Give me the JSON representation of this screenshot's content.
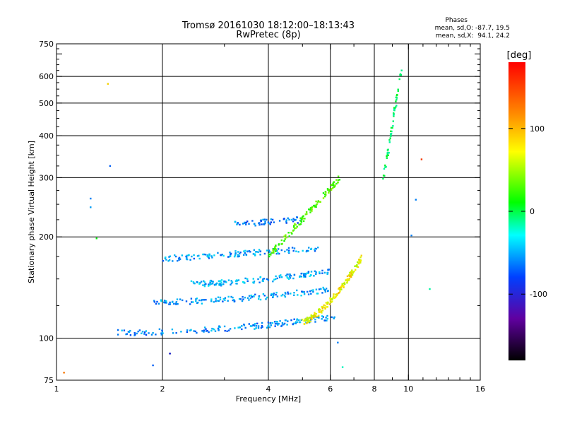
{
  "chart_data": {
    "type": "scatter",
    "title": "Tromsø 20161030 18:12:00–18:13:43",
    "subtitle": "RwPretec (8p)",
    "xlabel": "Frequency [MHz]",
    "ylabel": "Stationary phase Virtual Height [km]",
    "xscale": "log",
    "yscale": "log",
    "xlim": [
      1,
      16
    ],
    "ylim": [
      75,
      750
    ],
    "xticks": [
      1,
      2,
      4,
      6,
      8,
      10,
      16
    ],
    "xtick_labels": [
      "1",
      "2",
      "4",
      "6",
      "8",
      "10",
      "16"
    ],
    "yticks": [
      75,
      100,
      200,
      300,
      400,
      500,
      600,
      750
    ],
    "ytick_labels": [
      "75",
      "100",
      "200",
      "300",
      "400",
      "500",
      "600",
      "750"
    ],
    "grid": true,
    "stats": {
      "heading": "Phases",
      "line_o": "mean, sd,O: -87.7, 19.5",
      "line_x": "mean, sd,X:  94.1, 24.2"
    },
    "colorbar": {
      "label": "[deg]",
      "range": [
        -180,
        180
      ],
      "ticks": [
        100,
        0,
        -100
      ],
      "tick_labels": [
        "100",
        "0",
        "-100"
      ]
    },
    "traces": [
      {
        "name": "trace-E",
        "x_range": [
          1.5,
          6.2
        ],
        "y_start": 104,
        "y_end": 116,
        "curve": 2.0,
        "n": 170,
        "phase": -105
      },
      {
        "name": "trace-F1a",
        "x_range": [
          1.9,
          6.0
        ],
        "y_start": 128,
        "y_end": 140,
        "curve": 1.8,
        "n": 140,
        "phase": -100
      },
      {
        "name": "trace-F1b",
        "x_range": [
          2.4,
          6.0
        ],
        "y_start": 145,
        "y_end": 158,
        "curve": 1.6,
        "n": 140,
        "phase": -95
      },
      {
        "name": "trace-F1c",
        "x_range": [
          2.0,
          5.6
        ],
        "y_start": 172,
        "y_end": 185,
        "curve": 1.0,
        "n": 130,
        "phase": -100
      },
      {
        "name": "trace-F2",
        "x_range": [
          3.2,
          5.0
        ],
        "y_start": 218,
        "y_end": 225,
        "curve": 1.0,
        "n": 60,
        "phase": -110
      },
      {
        "name": "trace-X",
        "x_range": [
          5.0,
          7.4
        ],
        "y_start": 112,
        "y_end": 175,
        "curve": 1.5,
        "n": 160,
        "phase": 95
      },
      {
        "name": "trace-spread",
        "x_range": [
          4.0,
          6.4
        ],
        "y_start": 175,
        "y_end": 300,
        "curve": 1.0,
        "n": 120,
        "phase": 40
      },
      {
        "name": "trace-high",
        "x_range": [
          8.5,
          9.6
        ],
        "y_start": 300,
        "y_end": 650,
        "curve": 1.0,
        "n": 60,
        "phase": -20
      }
    ],
    "scattered_points": [
      {
        "x": 1.4,
        "y": 570,
        "phase": 110
      },
      {
        "x": 1.42,
        "y": 325,
        "phase": -120
      },
      {
        "x": 1.25,
        "y": 260,
        "phase": -110
      },
      {
        "x": 1.25,
        "y": 245,
        "phase": -100
      },
      {
        "x": 1.3,
        "y": 198,
        "phase": 10
      },
      {
        "x": 1.05,
        "y": 79,
        "phase": 140
      },
      {
        "x": 1.88,
        "y": 83,
        "phase": -120
      },
      {
        "x": 2.1,
        "y": 90,
        "phase": -150
      },
      {
        "x": 6.3,
        "y": 97,
        "phase": -110
      },
      {
        "x": 6.5,
        "y": 82,
        "phase": -50
      },
      {
        "x": 10.2,
        "y": 202,
        "phase": -110
      },
      {
        "x": 10.5,
        "y": 258,
        "phase": -110
      },
      {
        "x": 10.9,
        "y": 340,
        "phase": 160
      },
      {
        "x": 11.5,
        "y": 140,
        "phase": -40
      }
    ]
  }
}
